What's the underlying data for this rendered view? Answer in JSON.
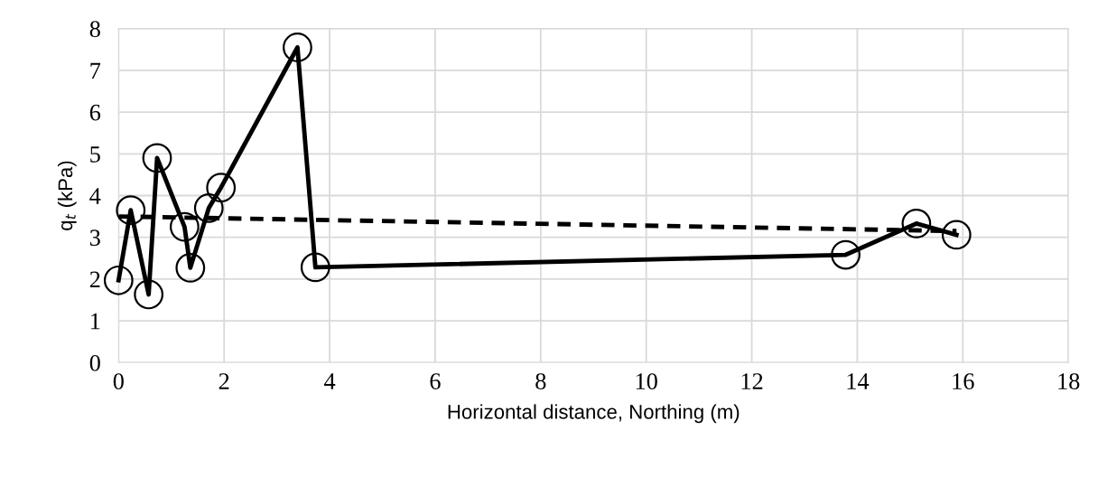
{
  "chart_data": {
    "type": "line",
    "xlabel": "Horizontal distance, Northing (m)",
    "ylabel": "q$_{t}$ (kPa)",
    "xlim": [
      0,
      18
    ],
    "xticks": [
      0,
      2,
      4,
      6,
      8,
      10,
      12,
      14,
      16,
      18
    ],
    "ylim": [
      0,
      8
    ],
    "yticks": [
      0,
      1,
      2,
      3,
      4,
      5,
      6,
      7,
      8
    ],
    "grid": true,
    "legend": false,
    "series": [
      {
        "color": "#000000",
        "marker": "circle",
        "line_style": "solid",
        "x": [
          0,
          0.23,
          0.57,
          0.73,
          1.25,
          1.36,
          1.71,
          1.94,
          3.39,
          3.73,
          13.78,
          15.12,
          15.88
        ],
        "values": [
          1.97,
          3.65,
          1.63,
          4.9,
          3.25,
          2.27,
          3.7,
          4.19,
          7.55,
          2.28,
          2.58,
          3.33,
          3.06
        ]
      },
      {
        "color": "#000000",
        "marker": "none",
        "line_style": "dashed",
        "x": [
          0,
          15.88
        ],
        "values": [
          3.5,
          3.15
        ]
      }
    ]
  }
}
